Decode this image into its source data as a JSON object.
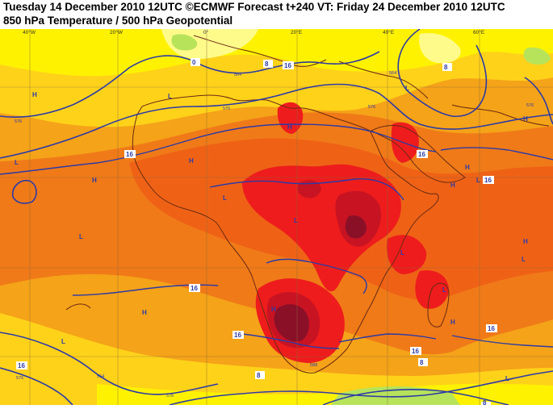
{
  "header": {
    "line1": "Tuesday 14 December 2010 12UTC ©ECMWF Forecast t+240 VT: Friday 24 December 2010 12UTC",
    "line2": "850 hPa Temperature / 500 hPa Geopotential"
  },
  "map": {
    "lon_labels": [
      "40°W",
      "20°W",
      "0°",
      "20°E",
      "40°E",
      "60°E"
    ],
    "pressure_centers": [
      "H",
      "H",
      "H",
      "H",
      "H",
      "H",
      "H",
      "H",
      "H",
      "H",
      "H",
      "L",
      "L",
      "L",
      "L",
      "L",
      "L",
      "L",
      "L",
      "L",
      "L",
      "L",
      "L"
    ],
    "temperature_labels": [
      "0",
      "8",
      "8",
      "8",
      "16",
      "16",
      "16",
      "16",
      "16",
      "16",
      "16",
      "16",
      "16",
      "8",
      "8"
    ],
    "geopotential_labels": [
      "564",
      "576",
      "564",
      "576",
      "576",
      "576",
      "576",
      "564",
      "576",
      "588"
    ],
    "colors": {
      "ocean_base": "#f5a318",
      "warm_orange": "#f07a18",
      "deep_orange": "#ef6216",
      "red": "#ee1c1c",
      "dark_red": "#c81323",
      "maroon": "#8a1028",
      "yellow": "#fff200",
      "pale_yellow": "#fffb8a",
      "light_green": "#b6e35a",
      "contour_blue": "#2d3aa6",
      "coast_brown": "#6a2a12"
    }
  }
}
